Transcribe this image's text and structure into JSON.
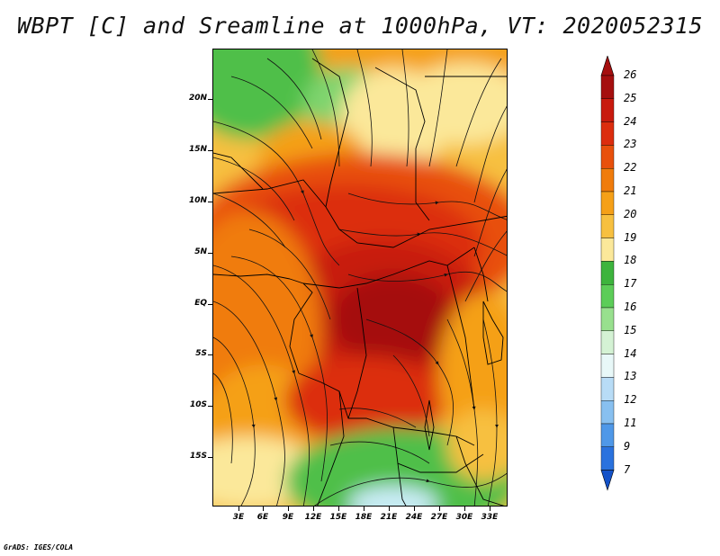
{
  "title": "WBPT [C] and Sreamline at 1000hPa, VT: 2020052315",
  "credit": "GrADS: IGES/COLA",
  "map": {
    "lat_ticks": [
      "20N",
      "15N",
      "10N",
      "5N",
      "EQ",
      "5S",
      "10S",
      "15S"
    ],
    "lon_ticks": [
      "3E",
      "6E",
      "9E",
      "12E",
      "15E",
      "18E",
      "21E",
      "24E",
      "27E",
      "30E",
      "33E"
    ]
  },
  "colorbar": {
    "labels": [
      "26",
      "25",
      "24",
      "23",
      "22",
      "21",
      "20",
      "19",
      "18",
      "17",
      "16",
      "15",
      "14",
      "13",
      "12",
      "11",
      "9",
      "7"
    ],
    "colors": [
      "#a50f0f",
      "#c81a0e",
      "#dc2d0e",
      "#e8500c",
      "#f07c0c",
      "#f5a018",
      "#f7c040",
      "#fbe89a",
      "#3db43d",
      "#5ccd58",
      "#98e08e",
      "#d4f2d4",
      "#e8f8f8",
      "#b8dcf6",
      "#88c0f0",
      "#4f98e8",
      "#2a72de",
      "#1452c8"
    ]
  }
}
